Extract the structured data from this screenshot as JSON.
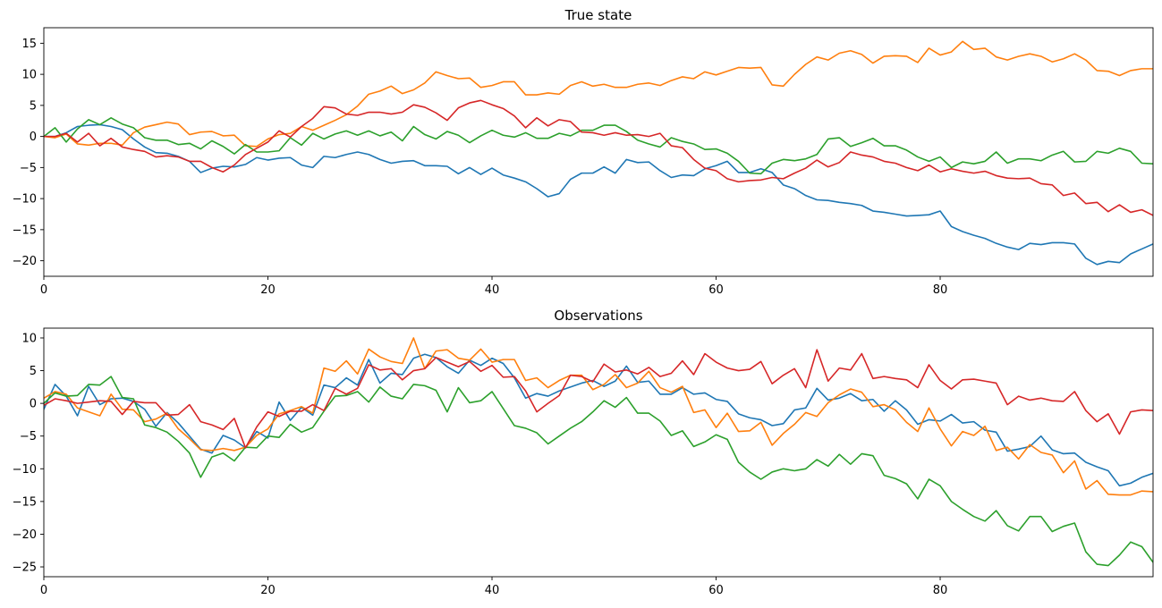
{
  "chart_data": [
    {
      "type": "line",
      "title": "True state",
      "xlabel": "",
      "ylabel": "",
      "xlim": [
        0,
        99
      ],
      "ylim": [
        -22.5,
        17.5
      ],
      "x_ticks": [
        0,
        20,
        40,
        60,
        80
      ],
      "y_ticks": [
        15,
        10,
        5,
        0,
        -5,
        -10,
        -15,
        -20
      ],
      "grid": false,
      "series": [
        {
          "color": "#1f77b4",
          "values": [
            0,
            0,
            0.6,
            1.6,
            1.8,
            1.9,
            1.6,
            1.1,
            -0.4,
            -1.7,
            -2.6,
            -2.7,
            -3.2,
            -4.0,
            -5.8,
            -5.1,
            -4.8,
            -4.9,
            -4.5,
            -3.4,
            -3.8,
            -3.5,
            -3.4,
            -4.6,
            -5.0,
            -3.2,
            -3.4,
            -2.9,
            -2.5,
            -2.9,
            -3.7,
            -4.3,
            -4.0,
            -3.9,
            -4.7,
            -4.7,
            -4.8,
            -6.0,
            -5.0,
            -6.1,
            -5.1,
            -6.2,
            -6.7,
            -7.3,
            -8.4,
            -9.7,
            -9.2,
            -6.9,
            -5.9,
            -5.9,
            -4.9,
            -5.9,
            -3.7,
            -4.2,
            -4.1,
            -5.5,
            -6.6,
            -6.2,
            -6.3,
            -5.2,
            -4.7,
            -4.0,
            -5.8,
            -5.8,
            -5.2,
            -5.8,
            -7.8,
            -8.4,
            -9.5,
            -10.2,
            -10.3,
            -10.6,
            -10.8,
            -11.1,
            -12.0,
            -12.2,
            -12.5,
            -12.8,
            -12.7,
            -12.6,
            -12.0,
            -14.5,
            -15.3,
            -15.9,
            -16.4,
            -17.2,
            -17.8,
            -18.2,
            -17.2,
            -17.4,
            -17.1,
            -17.1,
            -17.3,
            -19.6,
            -20.6,
            -20.1,
            -20.3,
            -18.9,
            -18.1,
            -17.3
          ]
        },
        {
          "color": "#ff7f0e",
          "values": [
            0,
            -0.2,
            0.4,
            -1.2,
            -1.4,
            -1.1,
            -1.1,
            -1.4,
            0.6,
            1.5,
            1.9,
            2.3,
            2.0,
            0.3,
            0.7,
            0.8,
            0.1,
            0.2,
            -1.5,
            -1.6,
            -0.4,
            0.3,
            0.5,
            1.6,
            1.0,
            1.8,
            2.6,
            3.5,
            4.9,
            6.8,
            7.3,
            8.1,
            6.9,
            7.5,
            8.6,
            10.4,
            9.8,
            9.3,
            9.4,
            7.9,
            8.2,
            8.8,
            8.8,
            6.7,
            6.7,
            7.0,
            6.8,
            8.2,
            8.8,
            8.1,
            8.4,
            7.9,
            7.9,
            8.4,
            8.6,
            8.2,
            9.0,
            9.6,
            9.3,
            10.4,
            9.9,
            10.5,
            11.1,
            11.0,
            11.1,
            8.3,
            8.1,
            10.0,
            11.6,
            12.8,
            12.3,
            13.4,
            13.8,
            13.2,
            11.8,
            12.9,
            13.0,
            12.9,
            11.9,
            14.2,
            13.1,
            13.6,
            15.3,
            14.0,
            14.2,
            12.8,
            12.3,
            12.9,
            13.3,
            12.9,
            12.0,
            12.5,
            13.3,
            12.3,
            10.6,
            10.5,
            9.8,
            10.6,
            10.9,
            10.9
          ]
        },
        {
          "color": "#2ca02c",
          "values": [
            0,
            1.4,
            -0.9,
            1.2,
            2.7,
            1.9,
            3.0,
            2.0,
            1.4,
            -0.2,
            -0.6,
            -0.6,
            -1.3,
            -1.1,
            -2.0,
            -0.7,
            -1.6,
            -2.8,
            -1.3,
            -2.5,
            -2.5,
            -2.3,
            -0.2,
            -1.4,
            0.5,
            -0.4,
            0.4,
            0.9,
            0.2,
            0.9,
            0.1,
            0.7,
            -0.7,
            1.6,
            0.3,
            -0.4,
            0.8,
            0.2,
            -1.0,
            0.1,
            1.0,
            0.2,
            -0.1,
            0.6,
            -0.3,
            -0.3,
            0.5,
            0.1,
            1.0,
            1.0,
            1.8,
            1.8,
            0.8,
            -0.6,
            -1.2,
            -1.7,
            -0.2,
            -0.8,
            -1.2,
            -2.1,
            -2.0,
            -2.7,
            -4.0,
            -5.9,
            -6.0,
            -4.3,
            -3.7,
            -3.9,
            -3.6,
            -2.9,
            -0.4,
            -0.2,
            -1.6,
            -1.0,
            -0.3,
            -1.5,
            -1.5,
            -2.2,
            -3.3,
            -4.0,
            -3.3,
            -5.0,
            -4.1,
            -4.4,
            -4.0,
            -2.5,
            -4.3,
            -3.6,
            -3.6,
            -3.9,
            -3.0,
            -2.4,
            -4.1,
            -4.0,
            -2.4,
            -2.7,
            -1.9,
            -2.4,
            -4.3,
            -4.4
          ]
        },
        {
          "color": "#d62728",
          "values": [
            0,
            0,
            0.5,
            -0.9,
            0.5,
            -1.5,
            -0.3,
            -1.7,
            -2.1,
            -2.4,
            -3.3,
            -3.1,
            -3.3,
            -4.0,
            -4.0,
            -5.0,
            -5.7,
            -4.6,
            -2.9,
            -1.9,
            -0.9,
            0.9,
            -0.1,
            1.6,
            2.9,
            4.8,
            4.6,
            3.6,
            3.4,
            3.9,
            3.9,
            3.6,
            3.9,
            5.1,
            4.7,
            3.8,
            2.6,
            4.6,
            5.4,
            5.8,
            5.1,
            4.5,
            3.3,
            1.4,
            3.0,
            1.7,
            2.7,
            2.4,
            0.7,
            0.6,
            0.2,
            0.6,
            0.2,
            0.3,
            0.0,
            0.5,
            -1.5,
            -1.8,
            -3.7,
            -5.1,
            -5.5,
            -6.8,
            -7.3,
            -7.1,
            -7.0,
            -6.6,
            -6.8,
            -5.9,
            -5.1,
            -3.8,
            -4.9,
            -4.2,
            -2.5,
            -3.0,
            -3.3,
            -4.0,
            -4.3,
            -5.0,
            -5.5,
            -4.6,
            -5.7,
            -5.2,
            -5.6,
            -5.9,
            -5.6,
            -6.3,
            -6.7,
            -6.8,
            -6.7,
            -7.6,
            -7.8,
            -9.5,
            -9.1,
            -10.8,
            -10.6,
            -12.1,
            -11.0,
            -12.2,
            -11.8,
            -12.7
          ]
        }
      ]
    },
    {
      "type": "line",
      "title": "Observations",
      "xlabel": "",
      "ylabel": "",
      "xlim": [
        0,
        99
      ],
      "ylim": [
        -26.5,
        11.5
      ],
      "x_ticks": [
        0,
        20,
        40,
        60,
        80
      ],
      "y_ticks": [
        10,
        5,
        0,
        -5,
        -10,
        -15,
        -20,
        -25
      ],
      "grid": false,
      "series": [
        {
          "color": "#1f77b4",
          "values": [
            -0.9,
            2.9,
            1.1,
            -1.9,
            2.6,
            -0.2,
            0.7,
            0.8,
            0.3,
            -0.9,
            -3.5,
            -1.4,
            -3.0,
            -5.0,
            -7.0,
            -7.6,
            -4.9,
            -5.6,
            -6.8,
            -4.3,
            -5.3,
            0.2,
            -2.6,
            -0.6,
            -1.8,
            2.8,
            2.4,
            3.9,
            2.8,
            6.7,
            3.1,
            4.6,
            4.4,
            6.9,
            7.5,
            7.0,
            5.6,
            4.6,
            6.6,
            5.8,
            6.9,
            6.1,
            3.9,
            0.8,
            1.5,
            1.1,
            1.9,
            2.5,
            3.1,
            3.5,
            2.6,
            3.4,
            5.7,
            3.2,
            3.4,
            1.4,
            1.4,
            2.4,
            1.4,
            1.6,
            0.6,
            0.3,
            -1.6,
            -2.2,
            -2.5,
            -3.4,
            -3.1,
            -1.0,
            -0.7,
            2.3,
            0.5,
            0.8,
            1.5,
            0.4,
            0.6,
            -1.2,
            0.4,
            -1.0,
            -3.2,
            -2.5,
            -2.7,
            -1.7,
            -3.0,
            -2.8,
            -4.1,
            -4.4,
            -7.3,
            -7.0,
            -6.6,
            -5.0,
            -7.1,
            -7.7,
            -7.6,
            -9.0,
            -9.7,
            -10.3,
            -12.6,
            -12.2,
            -11.3,
            -10.7
          ]
        },
        {
          "color": "#ff7f0e",
          "values": [
            0.8,
            1.8,
            1.4,
            -0.7,
            -1.3,
            -1.9,
            1.4,
            -0.9,
            -1.0,
            -2.8,
            -2.4,
            -1.5,
            -3.9,
            -5.4,
            -7.1,
            -7.2,
            -6.9,
            -7.2,
            -6.7,
            -4.9,
            -3.9,
            -1.6,
            -1.1,
            -0.5,
            -1.5,
            5.4,
            4.9,
            6.5,
            4.5,
            8.3,
            7.1,
            6.4,
            6.1,
            10.0,
            5.3,
            8.0,
            8.2,
            6.9,
            6.6,
            8.3,
            6.3,
            6.7,
            6.7,
            3.5,
            3.9,
            2.4,
            3.5,
            4.3,
            4.3,
            2.1,
            2.9,
            4.4,
            2.4,
            3.1,
            4.9,
            2.4,
            1.7,
            2.6,
            -1.4,
            -1.0,
            -3.7,
            -1.5,
            -4.3,
            -4.2,
            -2.9,
            -6.4,
            -4.6,
            -3.2,
            -1.4,
            -2.0,
            0.1,
            1.3,
            2.2,
            1.7,
            -0.5,
            -0.2,
            -1.0,
            -2.9,
            -4.3,
            -0.7,
            -3.9,
            -6.5,
            -4.3,
            -4.9,
            -3.5,
            -7.2,
            -6.7,
            -8.5,
            -6.3,
            -7.5,
            -7.9,
            -10.6,
            -8.8,
            -13.1,
            -11.8,
            -13.9,
            -14.0,
            -14.0,
            -13.4,
            -13.5
          ]
        },
        {
          "color": "#2ca02c",
          "values": [
            0.0,
            1.6,
            1.1,
            1.2,
            2.9,
            2.8,
            4.1,
            0.9,
            0.7,
            -3.3,
            -3.7,
            -4.4,
            -5.8,
            -7.6,
            -11.3,
            -8.2,
            -7.6,
            -8.8,
            -6.7,
            -6.8,
            -5.0,
            -5.2,
            -3.2,
            -4.4,
            -3.7,
            -1.2,
            1.1,
            1.2,
            1.8,
            0.2,
            2.5,
            1.1,
            0.7,
            2.9,
            2.7,
            2.0,
            -1.3,
            2.4,
            0.1,
            0.4,
            1.8,
            -0.8,
            -3.4,
            -3.8,
            -4.5,
            -6.2,
            -5.0,
            -3.8,
            -2.8,
            -1.3,
            0.4,
            -0.6,
            0.9,
            -1.5,
            -1.5,
            -2.7,
            -4.9,
            -4.2,
            -6.6,
            -5.9,
            -4.8,
            -5.5,
            -9.0,
            -10.5,
            -11.6,
            -10.5,
            -10.0,
            -10.3,
            -10.0,
            -8.6,
            -9.6,
            -7.8,
            -9.3,
            -7.7,
            -8.0,
            -11.0,
            -11.5,
            -12.3,
            -14.6,
            -11.6,
            -12.6,
            -15.0,
            -16.2,
            -17.3,
            -18.0,
            -16.4,
            -18.7,
            -19.5,
            -17.3,
            -17.3,
            -19.6,
            -18.8,
            -18.3,
            -22.7,
            -24.6,
            -24.8,
            -23.2,
            -21.2,
            -21.9,
            -24.3
          ]
        },
        {
          "color": "#d62728",
          "values": [
            -0.3,
            0.7,
            0.4,
            0.0,
            0.2,
            0.4,
            0.3,
            -1.7,
            0.3,
            0.1,
            0.1,
            -1.8,
            -1.7,
            -0.2,
            -2.8,
            -3.3,
            -4.0,
            -2.3,
            -6.8,
            -3.6,
            -1.3,
            -2.0,
            -1.2,
            -1.2,
            -0.2,
            -1.1,
            2.3,
            1.4,
            2.3,
            5.9,
            5.1,
            5.3,
            3.6,
            5.0,
            5.3,
            7.0,
            6.3,
            5.6,
            6.4,
            4.9,
            5.8,
            4.0,
            4.1,
            1.9,
            -1.3,
            0.0,
            1.2,
            4.3,
            4.1,
            3.3,
            6.0,
            4.8,
            5.1,
            4.5,
            5.5,
            4.1,
            4.6,
            6.5,
            4.4,
            7.6,
            6.3,
            5.4,
            5.0,
            5.2,
            6.4,
            3.0,
            4.3,
            5.3,
            2.4,
            8.2,
            3.4,
            5.4,
            5.1,
            7.6,
            3.8,
            4.1,
            3.8,
            3.6,
            2.4,
            5.9,
            3.5,
            2.2,
            3.6,
            3.7,
            3.4,
            3.1,
            -0.2,
            1.1,
            0.5,
            0.8,
            0.4,
            0.3,
            1.8,
            -1.1,
            -2.8,
            -1.6,
            -4.7,
            -1.3,
            -1.0,
            -1.1
          ]
        }
      ]
    }
  ]
}
